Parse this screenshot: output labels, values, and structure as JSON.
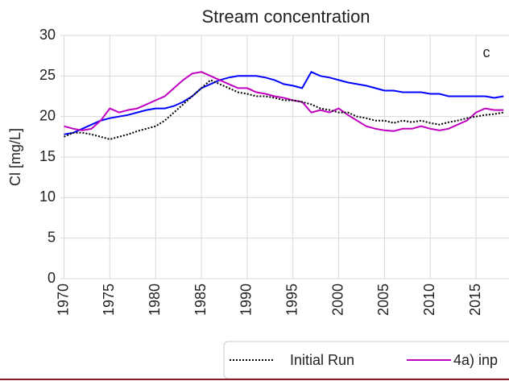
{
  "chart_data": {
    "type": "line",
    "title": "Stream concentration",
    "ylabel": "Cl [mg/L]",
    "annotation": "c",
    "x": [
      1970,
      1971,
      1972,
      1973,
      1974,
      1975,
      1976,
      1977,
      1978,
      1979,
      1980,
      1981,
      1982,
      1983,
      1984,
      1985,
      1986,
      1987,
      1988,
      1989,
      1990,
      1991,
      1992,
      1993,
      1994,
      1995,
      1996,
      1997,
      1998,
      1999,
      2000,
      2001,
      2002,
      2003,
      2004,
      2005,
      2006,
      2007,
      2008,
      2009,
      2010,
      2011,
      2012,
      2013,
      2014,
      2015,
      2016,
      2017,
      2018
    ],
    "series": [
      {
        "name": "Initial Run",
        "color": "#000000",
        "style": "dotted",
        "values": [
          17.5,
          18,
          18,
          17.8,
          17.5,
          17.2,
          17.5,
          17.8,
          18.2,
          18.5,
          18.8,
          19.5,
          20.5,
          21.5,
          22.5,
          23.5,
          24.5,
          24,
          23.5,
          23,
          22.8,
          22.5,
          22.5,
          22.3,
          22,
          22,
          21.8,
          21.5,
          21,
          20.8,
          20.5,
          20.5,
          20,
          19.8,
          19.5,
          19.5,
          19.2,
          19.5,
          19.3,
          19.5,
          19.2,
          19,
          19.3,
          19.5,
          19.8,
          20,
          20.2,
          20.3,
          20.5
        ]
      },
      {
        "name": "4a) inp",
        "color": "#c000c0",
        "style": "solid",
        "values": [
          18.8,
          18.5,
          18.3,
          18.5,
          19.5,
          21,
          20.5,
          20.8,
          21,
          21.5,
          22,
          22.5,
          23.5,
          24.5,
          25.3,
          25.5,
          25,
          24.5,
          24,
          23.5,
          23.5,
          23,
          22.8,
          22.5,
          22.3,
          22,
          21.8,
          20.5,
          20.8,
          20.5,
          21,
          20.2,
          19.5,
          18.8,
          18.5,
          18.3,
          18.2,
          18.5,
          18.5,
          18.8,
          18.5,
          18.3,
          18.5,
          19,
          19.5,
          20.5,
          21,
          20.8,
          20.8
        ]
      },
      {
        "color": "#0000ff",
        "style": "solid",
        "values": [
          17.8,
          18,
          18.5,
          19,
          19.5,
          19.8,
          20,
          20.2,
          20.5,
          20.8,
          21,
          21,
          21.3,
          21.8,
          22.5,
          23.5,
          24,
          24.5,
          24.8,
          25,
          25,
          25,
          24.8,
          24.5,
          24,
          23.8,
          23.5,
          25.5,
          25,
          24.8,
          24.5,
          24.2,
          24,
          23.8,
          23.5,
          23.2,
          23.2,
          23,
          23,
          23,
          22.8,
          22.8,
          22.5,
          22.5,
          22.5,
          22.5,
          22.5,
          22.3,
          22.5
        ]
      }
    ],
    "xlim": [
      1969.6,
      2018.6
    ],
    "xticks": [
      1970,
      1975,
      1980,
      1985,
      1990,
      1995,
      2000,
      2005,
      2010,
      2015
    ],
    "ylim": [
      0,
      30
    ],
    "yticks": [
      0,
      5,
      10,
      15,
      20,
      25,
      30
    ],
    "grid": true
  }
}
